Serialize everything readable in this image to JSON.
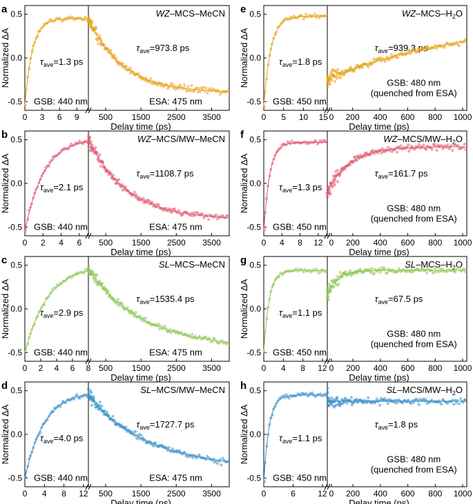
{
  "chart_data": [
    {
      "type": "scatter",
      "panel": "a",
      "title": "WZ–MCS–MeCN",
      "title_italic": "WZ",
      "title_rest": "–MCS–MeCN",
      "color": "#e8a317",
      "ylabel": "Normalized ΔA",
      "xlabel": "Delay time (ps)",
      "ylim": [
        -0.6,
        0.6
      ],
      "yticks": [
        "0.5",
        "0.0",
        "-0.5"
      ],
      "ytick_values": [
        0.5,
        0.0,
        -0.5
      ],
      "left": {
        "xlim": [
          0,
          11
        ],
        "xticks": [
          0,
          3,
          6,
          9
        ],
        "xticklabels": [
          "0",
          "3",
          "6",
          "9"
        ],
        "tau": 1.3,
        "rise": true,
        "start": -0.55,
        "end": 0.45,
        "tau_text": "=1.3 ps",
        "probe": "GSB: 440 nm"
      },
      "right": {
        "xlim": [
          11,
          4000
        ],
        "xticks": [
          500,
          1500,
          2500,
          3500
        ],
        "xticklabels": [
          "500",
          "1500",
          "2500",
          "3500"
        ],
        "tau": 973.8,
        "rise": false,
        "start": 0.45,
        "end": -0.4,
        "tau_text": "=973.8 ps",
        "probe": "ESA: 475 nm",
        "probe2": ""
      }
    },
    {
      "type": "scatter",
      "panel": "b",
      "title": "WZ–MCS/MW–MeCN",
      "title_italic": "WZ",
      "title_rest": "–MCS/MW–MeCN",
      "color": "#e05a75",
      "ylabel": "Normalized ΔA",
      "xlabel": "Delay time (ps)",
      "ylim": [
        -0.6,
        0.6
      ],
      "yticks": [
        "0.5",
        "0.0",
        "-0.5"
      ],
      "ytick_values": [
        0.5,
        0.0,
        -0.5
      ],
      "left": {
        "xlim": [
          0,
          7
        ],
        "xticks": [
          0,
          2,
          4,
          6
        ],
        "xticklabels": [
          "0",
          "2",
          "4",
          "6"
        ],
        "tau": 2.1,
        "rise": true,
        "start": -0.55,
        "end": 0.52,
        "tau_text": "=2.1 ps",
        "probe": "GSB: 440 nm"
      },
      "right": {
        "xlim": [
          7,
          4000
        ],
        "xticks": [
          500,
          1500,
          2500,
          3500
        ],
        "xticklabels": [
          "500",
          "1500",
          "2500",
          "3500"
        ],
        "tau": 1108.7,
        "rise": false,
        "start": 0.5,
        "end": -0.42,
        "tau_text": "=1108.7 ps",
        "probe": "ESA: 475 nm",
        "probe2": ""
      }
    },
    {
      "type": "scatter",
      "panel": "c",
      "title": "SL–MCS–MeCN",
      "title_italic": "SL",
      "title_rest": "–MCS–MeCN",
      "color": "#8fc85a",
      "ylabel": "Normalized ΔA",
      "xlabel": "Delay time (ps)",
      "ylim": [
        -0.6,
        0.6
      ],
      "yticks": [
        "0.5",
        "0.0",
        "-0.5"
      ],
      "ytick_values": [
        0.5,
        0.0,
        -0.5
      ],
      "left": {
        "xlim": [
          0,
          8
        ],
        "xticks": [
          0,
          2,
          4,
          6,
          8
        ],
        "xticklabels": [
          "0",
          "2",
          "4",
          "6",
          "8"
        ],
        "tau": 2.9,
        "rise": true,
        "start": -0.5,
        "end": 0.5,
        "tau_text": "=2.9 ps",
        "probe": "GSB: 440 nm"
      },
      "right": {
        "xlim": [
          8,
          4000
        ],
        "xticks": [
          500,
          1500,
          2500,
          3500
        ],
        "xticklabels": [
          "500",
          "1500",
          "2500",
          "3500"
        ],
        "tau": 1535.4,
        "rise": false,
        "start": 0.45,
        "end": -0.45,
        "tau_text": "=1535.4 ps",
        "probe": "ESA: 475 nm",
        "probe2": ""
      }
    },
    {
      "type": "scatter",
      "panel": "d",
      "title": "SL–MCS/MW–MeCN",
      "title_italic": "SL",
      "title_rest": "–MCS/MW–MeCN",
      "color": "#3a8fc7",
      "ylabel": "Normalized ΔA",
      "xlabel": "Delay time (ps)",
      "ylim": [
        -0.6,
        0.6
      ],
      "yticks": [
        "0.5",
        "0.0",
        "-0.5"
      ],
      "ytick_values": [
        0.5,
        0.0,
        -0.5
      ],
      "left": {
        "xlim": [
          0,
          13
        ],
        "xticks": [
          0,
          4,
          8,
          12
        ],
        "xticklabels": [
          "0",
          "4",
          "8",
          "12"
        ],
        "tau": 4.0,
        "rise": true,
        "start": -0.5,
        "end": 0.5,
        "tau_text": "=4.0 ps",
        "probe": "GSB: 440 nm"
      },
      "right": {
        "xlim": [
          13,
          4000
        ],
        "xticks": [
          500,
          1500,
          2500,
          3500
        ],
        "xticklabels": [
          "500",
          "1500",
          "2500",
          "3500"
        ],
        "tau": 1727.7,
        "rise": false,
        "start": 0.45,
        "end": -0.4,
        "tau_text": "=1727.7 ps",
        "probe": "ESA: 475 nm",
        "probe2": ""
      }
    },
    {
      "type": "scatter",
      "panel": "e",
      "title": "WZ–MCS–H2O",
      "title_italic": "WZ",
      "title_rest": "–MCS–H",
      "title_sub": "2",
      "title_end": "O",
      "color": "#e8a317",
      "ylabel": "Normalized ΔA",
      "xlabel": "Delay time (ps)",
      "ylim": [
        -0.6,
        0.6
      ],
      "yticks": [
        "0.5",
        "0.0",
        "-0.5"
      ],
      "ytick_values": [
        0.5,
        0.0,
        -0.5
      ],
      "left": {
        "xlim": [
          0,
          16
        ],
        "xticks": [
          0,
          5,
          10,
          15
        ],
        "xticklabels": [
          "0",
          "5",
          "10",
          "15"
        ],
        "tau": 1.8,
        "rise": true,
        "start": -0.55,
        "end": 0.48,
        "tau_text": "=1.8 ps",
        "probe": "GSB: 450 nm"
      },
      "right": {
        "xlim": [
          16,
          1030
        ],
        "xticks": [
          0,
          200,
          400,
          600,
          800,
          1000
        ],
        "xticklabels": [
          "0",
          "200",
          "400",
          "600",
          "800",
          "1000"
        ],
        "tau": 939.3,
        "rise": true,
        "start": -0.25,
        "end": 0.42,
        "tau_text": "=939.3 ps",
        "probe": "GSB: 480 nm",
        "probe2": "(quenched from ESA)"
      }
    },
    {
      "type": "scatter",
      "panel": "f",
      "title": "WZ–MCS/MW–H2O",
      "title_italic": "WZ",
      "title_rest": "–MCS/MW–H",
      "title_sub": "2",
      "title_end": "O",
      "color": "#e05a75",
      "ylabel": "Normalized ΔA",
      "xlabel": "Delay time (ps)",
      "ylim": [
        -0.6,
        0.6
      ],
      "yticks": [
        "0.5",
        "0.0",
        "-0.5"
      ],
      "ytick_values": [
        0.5,
        0.0,
        -0.5
      ],
      "left": {
        "xlim": [
          0,
          14
        ],
        "xticks": [
          0,
          4,
          8,
          12
        ],
        "xticklabels": [
          "0",
          "4",
          "8",
          "12"
        ],
        "tau": 1.3,
        "rise": true,
        "start": -0.55,
        "end": 0.47,
        "tau_text": "=1.3 ps",
        "probe": "GSB: 450 nm"
      },
      "right": {
        "xlim": [
          14,
          1030
        ],
        "xticks": [
          0,
          200,
          400,
          600,
          800,
          1000
        ],
        "xticklabels": [
          "0",
          "200",
          "400",
          "600",
          "800",
          "1000"
        ],
        "tau": 161.7,
        "rise": true,
        "start": -0.1,
        "end": 0.42,
        "tau_text": "=161.7 ps",
        "probe": "GSB: 480 nm",
        "probe2": "(quenched from ESA)"
      }
    },
    {
      "type": "scatter",
      "panel": "g",
      "title": "SL–MCS–H2O",
      "title_italic": "SL",
      "title_rest": "–MCS–H",
      "title_sub": "2",
      "title_end": "O",
      "color": "#8fc85a",
      "ylabel": "Normalized ΔA",
      "xlabel": "Delay time (ps)",
      "ylim": [
        -0.6,
        0.6
      ],
      "yticks": [
        "0.5",
        "0.0",
        "-0.5"
      ],
      "ytick_values": [
        0.5,
        0.0,
        -0.5
      ],
      "left": {
        "xlim": [
          0,
          13
        ],
        "xticks": [
          0,
          4,
          8,
          12
        ],
        "xticklabels": [
          "0",
          "4",
          "8",
          "12"
        ],
        "tau": 1.1,
        "rise": true,
        "start": -0.5,
        "end": 0.44,
        "tau_text": "=1.1 ps",
        "probe": "GSB: 450 nm"
      },
      "right": {
        "xlim": [
          13,
          1030
        ],
        "xticks": [
          0,
          200,
          400,
          600,
          800,
          1000
        ],
        "xticklabels": [
          "0",
          "200",
          "400",
          "600",
          "800",
          "1000"
        ],
        "tau": 67.5,
        "rise": true,
        "start": 0.15,
        "end": 0.44,
        "tau_text": "=67.5 ps",
        "probe": "GSB: 480 nm",
        "probe2": "(quenched from ESA)"
      }
    },
    {
      "type": "scatter",
      "panel": "h",
      "title": "SL–MCS/MW–H2O",
      "title_italic": "SL",
      "title_rest": "–MCS/MW–H",
      "title_sub": "2",
      "title_end": "O",
      "color": "#3a8fc7",
      "ylabel": "Normalized ΔA",
      "xlabel": "Delay time (ps)",
      "ylim": [
        -0.6,
        0.6
      ],
      "yticks": [
        "0.5",
        "0.0",
        "-0.5"
      ],
      "ytick_values": [
        0.5,
        0.0,
        -0.5
      ],
      "left": {
        "xlim": [
          0,
          13
        ],
        "xticks": [
          0,
          6,
          12
        ],
        "xticklabels": [
          "0",
          "6",
          "12"
        ],
        "tau": 1.1,
        "rise": true,
        "start": -0.55,
        "end": 0.45,
        "tau_text": "=1.1 ps",
        "probe": "GSB: 450 nm"
      },
      "right": {
        "xlim": [
          13,
          1030
        ],
        "xticks": [
          0,
          200,
          400,
          600,
          800,
          1000
        ],
        "xticklabels": [
          "0",
          "200",
          "400",
          "600",
          "800",
          "1000"
        ],
        "tau": 1.8,
        "rise": false,
        "start": 0.45,
        "end": 0.38,
        "tau_text": "=1.8 ps",
        "probe": "GSB: 480 nm",
        "probe2": "(quenched from ESA)"
      }
    }
  ],
  "tau_symbol": "τ",
  "tau_sub": "ave"
}
